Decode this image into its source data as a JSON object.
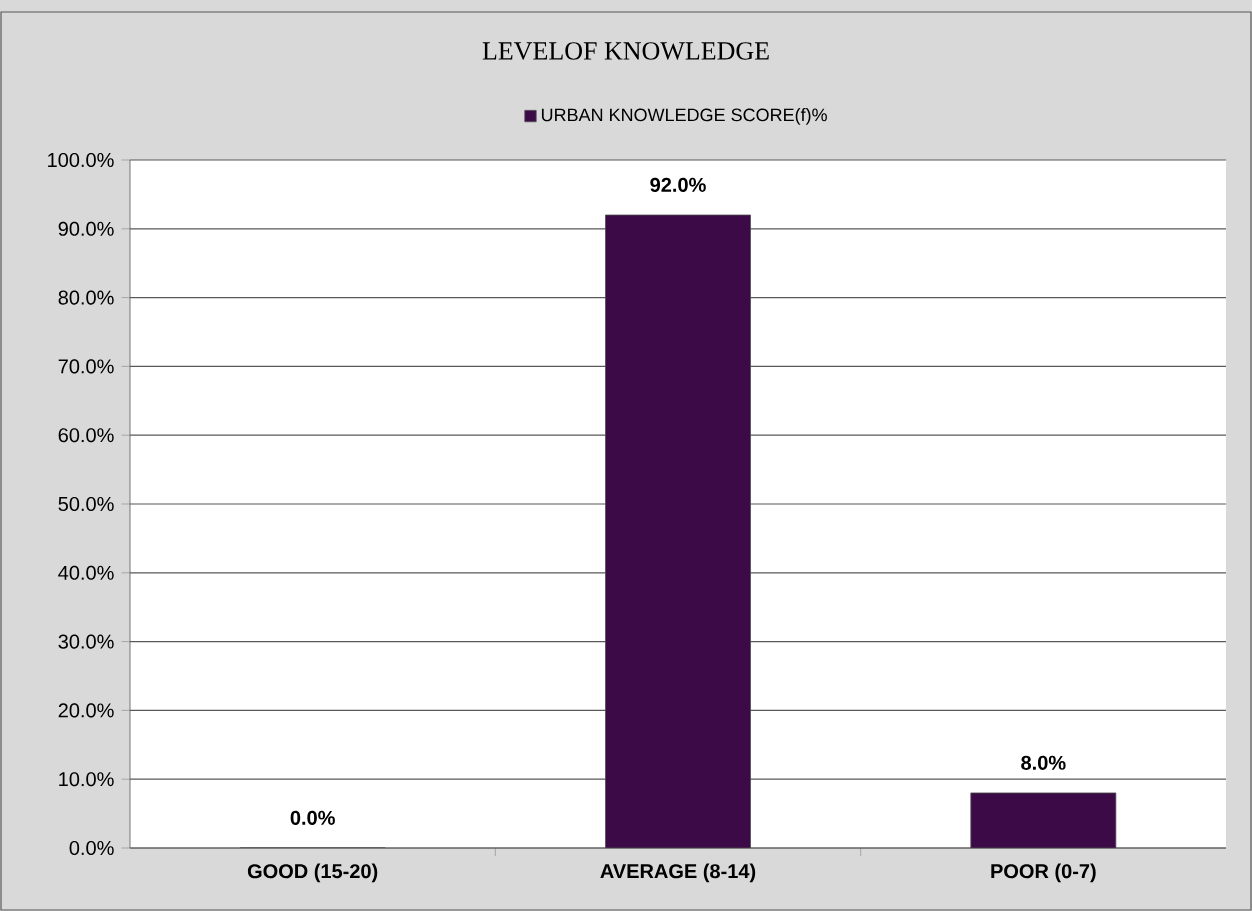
{
  "chart_data": {
    "type": "bar",
    "title": "LEVELOF KNOWLEDGE",
    "categories": [
      "GOOD (15-20)",
      "AVERAGE (8-14)",
      "POOR (0-7)"
    ],
    "series": [
      {
        "name": "URBAN KNOWLEDGE SCORE(f)%",
        "color": "#3d0a48",
        "values": [
          0,
          92,
          8
        ],
        "value_labels": [
          "0.0%",
          "92.0%",
          "8.0%"
        ]
      }
    ],
    "ylim": [
      0,
      100
    ],
    "yticks": [
      {
        "value": 0,
        "label": "0.0%"
      },
      {
        "value": 10,
        "label": "10.0%"
      },
      {
        "value": 20,
        "label": "20.0%"
      },
      {
        "value": 30,
        "label": "30.0%"
      },
      {
        "value": 40,
        "label": "40.0%"
      },
      {
        "value": 50,
        "label": "50.0%"
      },
      {
        "value": 60,
        "label": "60.0%"
      },
      {
        "value": 70,
        "label": "70.0%"
      },
      {
        "value": 80,
        "label": "80.0%"
      },
      {
        "value": 90,
        "label": "90.0%"
      },
      {
        "value": 100,
        "label": "100.0%"
      }
    ],
    "grid": "y",
    "legend": "top"
  }
}
